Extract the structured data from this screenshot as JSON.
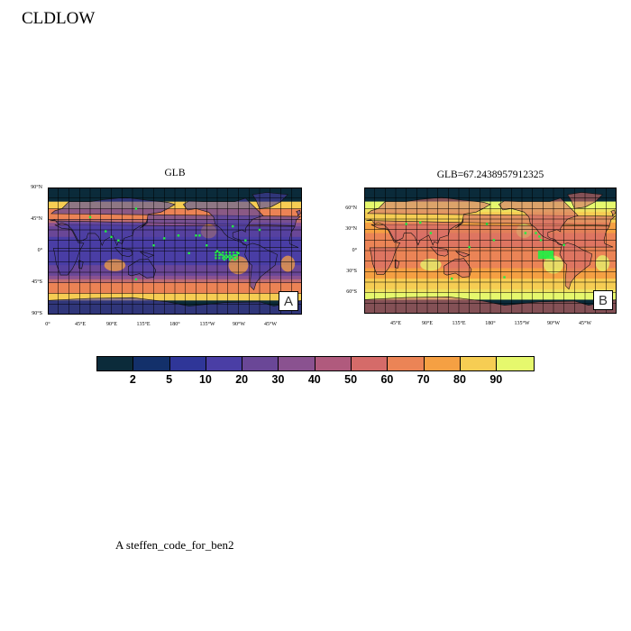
{
  "page": {
    "title": "CLDLOW",
    "footer": "A  steffen_code_for_ben2"
  },
  "colorbar": {
    "colors": [
      "#0b2b3a",
      "#13306a",
      "#2f3698",
      "#4a3ea5",
      "#6a4797",
      "#8a5290",
      "#b05a7d",
      "#d56b69",
      "#eb8456",
      "#f5a043",
      "#f6cd53",
      "#e6f86d"
    ],
    "labels": [
      "2",
      "5",
      "10",
      "20",
      "30",
      "40",
      "50",
      "60",
      "70",
      "80",
      "90"
    ]
  },
  "panels": [
    {
      "title": "GLB",
      "label": "A",
      "projection": "cylindrical-equidistant",
      "lat_range": [
        -90,
        90
      ],
      "lon_range": [
        0,
        360
      ],
      "yticks": [
        "90°N",
        "45°N",
        "0°",
        "45°S",
        "90°S"
      ],
      "xticks": [
        "0°",
        "45°E",
        "90°E",
        "135°E",
        "180°",
        "135°W",
        "90°W",
        "45°W"
      ]
    },
    {
      "title": "GLB=67.2438957912325",
      "label": "B",
      "projection": "cylindrical-equidistant",
      "lat_range": [
        -90,
        90
      ],
      "lon_range": [
        0,
        360
      ],
      "yticks": [
        "60°N",
        "30°N",
        "0°",
        "30°S",
        "60°S"
      ],
      "xticks": [
        "45°E",
        "90°E",
        "135°E",
        "180°",
        "135°W",
        "90°W",
        "45°W"
      ]
    }
  ],
  "significance_marker_color": "#22ee44"
}
